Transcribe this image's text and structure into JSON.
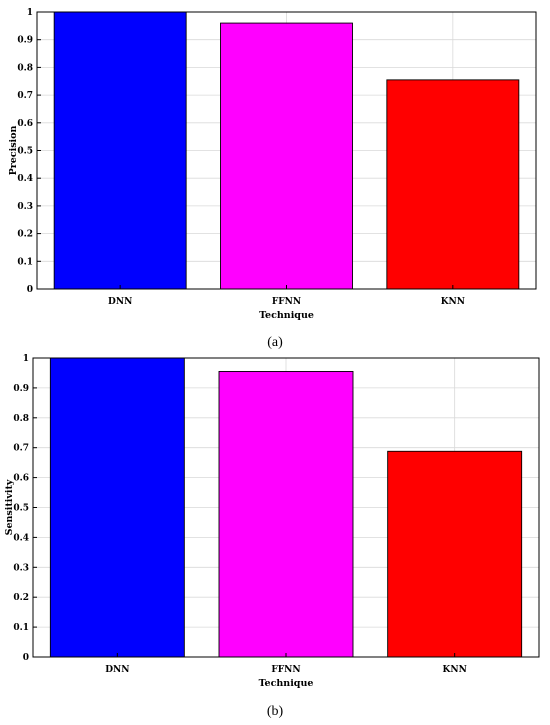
{
  "chart_data": [
    {
      "type": "bar",
      "title": "",
      "xlabel": "Technique",
      "ylabel": "Precision",
      "categories": [
        "DNN",
        "FFNN",
        "KNN"
      ],
      "values": [
        1.0,
        0.96,
        0.755
      ],
      "colors": [
        "#0000ff",
        "#ff00ff",
        "#ff0000"
      ],
      "ylim": [
        0,
        1
      ],
      "yticks": [
        "0",
        "0.1",
        "0.2",
        "0.3",
        "0.4",
        "0.5",
        "0.6",
        "0.7",
        "0.8",
        "0.9",
        "1"
      ],
      "grid": true,
      "caption": "(a)"
    },
    {
      "type": "bar",
      "title": "",
      "xlabel": "Technique",
      "ylabel": "Sensitivity",
      "categories": [
        "DNN",
        "FFNN",
        "KNN"
      ],
      "values": [
        1.0,
        0.955,
        0.688
      ],
      "colors": [
        "#0000ff",
        "#ff00ff",
        "#ff0000"
      ],
      "ylim": [
        0,
        1
      ],
      "yticks": [
        "0",
        "0.1",
        "0.2",
        "0.3",
        "0.4",
        "0.5",
        "0.6",
        "0.7",
        "0.8",
        "0.9",
        "1"
      ],
      "grid": true,
      "caption": "(b)"
    }
  ]
}
